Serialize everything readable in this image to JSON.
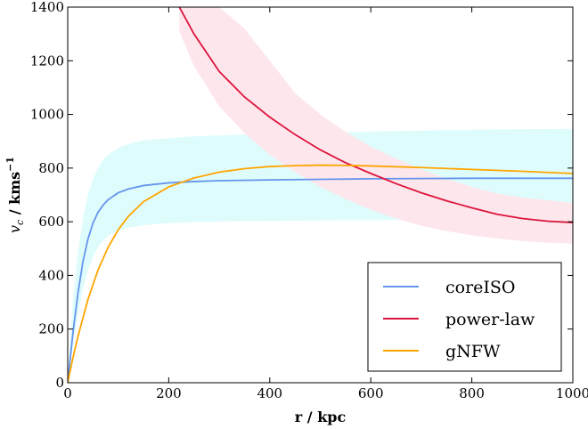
{
  "chart_data": {
    "type": "line",
    "xlabel": "r / kpc",
    "ylabel_main": "v",
    "ylabel_sub": "c",
    "ylabel_unit": " / kms",
    "ylabel_sup": "−1",
    "xlim": [
      0,
      1000
    ],
    "ylim": [
      0,
      1400
    ],
    "xticks": [
      "0",
      "200",
      "400",
      "600",
      "800",
      "1000"
    ],
    "yticks": [
      "0",
      "200",
      "400",
      "600",
      "800",
      "1000",
      "1200",
      "1400"
    ],
    "grid": false,
    "legend_position": "bottom-right",
    "series": [
      {
        "name": "coreISO",
        "color": "#6495ED",
        "band_color": "#dffcfc",
        "x": [
          0,
          10,
          20,
          30,
          40,
          50,
          60,
          70,
          80,
          100,
          120,
          150,
          200,
          250,
          300,
          400,
          500,
          600,
          700,
          800,
          900,
          1000
        ],
        "y": [
          0,
          180,
          330,
          450,
          535,
          595,
          635,
          662,
          682,
          708,
          722,
          735,
          745,
          750,
          753,
          756,
          758,
          760,
          761,
          762,
          762,
          762
        ],
        "band_lower": [
          0,
          130,
          250,
          350,
          420,
          470,
          505,
          530,
          548,
          568,
          578,
          587,
          595,
          599,
          601,
          603,
          605,
          606,
          607,
          607,
          608,
          608
        ],
        "band_upper": [
          0,
          300,
          480,
          610,
          700,
          760,
          800,
          830,
          850,
          875,
          890,
          903,
          912,
          918,
          922,
          928,
          932,
          936,
          940,
          943,
          945,
          946
        ]
      },
      {
        "name": "power-law",
        "color": "#DC143C",
        "band_color": "#fde6ec",
        "x": [
          221,
          250,
          300,
          350,
          400,
          450,
          500,
          550,
          600,
          650,
          700,
          750,
          800,
          850,
          900,
          950,
          1000
        ],
        "y": [
          1400,
          1300,
          1160,
          1065,
          990,
          925,
          868,
          820,
          780,
          742,
          708,
          678,
          652,
          628,
          612,
          602,
          597
        ],
        "band_lower": [
          1310,
          1180,
          1030,
          930,
          850,
          785,
          730,
          685,
          645,
          612,
          585,
          565,
          550,
          538,
          528,
          522,
          518
        ],
        "band_upper": [
          1400,
          1400,
          1400,
          1320,
          1200,
          1080,
          1000,
          935,
          880,
          835,
          795,
          760,
          730,
          705,
          690,
          680,
          670
        ]
      },
      {
        "name": "gNFW",
        "color": "#FFA500",
        "x": [
          0,
          10,
          20,
          40,
          60,
          80,
          100,
          120,
          150,
          200,
          250,
          300,
          350,
          400,
          450,
          500,
          550,
          600,
          700,
          800,
          900,
          1000
        ],
        "y": [
          0,
          90,
          170,
          310,
          420,
          505,
          570,
          620,
          675,
          730,
          763,
          785,
          798,
          806,
          809,
          811,
          810,
          808,
          802,
          795,
          788,
          780
        ]
      }
    ]
  }
}
